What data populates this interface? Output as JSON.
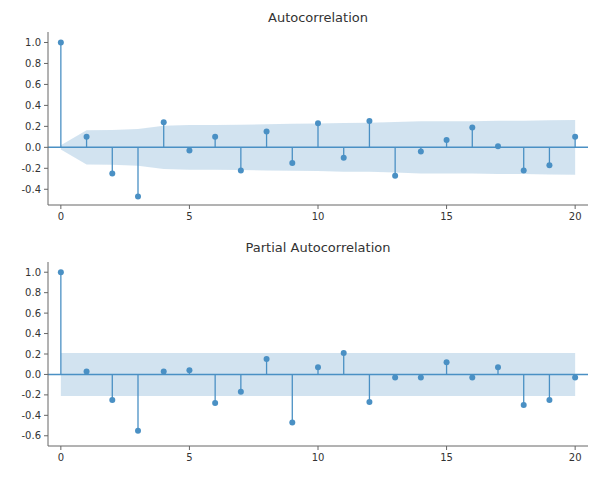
{
  "chart_data": [
    {
      "type": "stem",
      "title": "Autocorrelation",
      "x": [
        0,
        1,
        2,
        3,
        4,
        5,
        6,
        7,
        8,
        9,
        10,
        11,
        12,
        13,
        14,
        15,
        16,
        17,
        18,
        19,
        20
      ],
      "values": [
        1.0,
        0.1,
        -0.25,
        -0.47,
        0.24,
        -0.03,
        0.1,
        -0.22,
        0.15,
        -0.15,
        0.23,
        -0.1,
        0.25,
        -0.27,
        -0.04,
        0.07,
        0.19,
        0.01,
        -0.22,
        -0.17,
        0.1
      ],
      "conf_band": {
        "upper": [
          0.02,
          0.1639,
          0.1655,
          0.1754,
          0.2065,
          0.2138,
          0.2139,
          0.2152,
          0.2212,
          0.2239,
          0.2266,
          0.2327,
          0.2339,
          0.241,
          0.249,
          0.2491,
          0.2497,
          0.2535,
          0.2535,
          0.2586,
          0.2616
        ],
        "lower": [
          -0.02,
          -0.1639,
          -0.1655,
          -0.1754,
          -0.2065,
          -0.2138,
          -0.2139,
          -0.2152,
          -0.2212,
          -0.2239,
          -0.2266,
          -0.2327,
          -0.2339,
          -0.241,
          -0.249,
          -0.2491,
          -0.2497,
          -0.2535,
          -0.2535,
          -0.2586,
          -0.2616
        ]
      },
      "color": "#4a90c4",
      "xlim": [
        -0.5,
        20.5
      ],
      "xticks": [
        0,
        5,
        10,
        15,
        20
      ],
      "ylim": [
        -0.55,
        1.1
      ],
      "yticks": [
        -0.4,
        -0.2,
        {
          "value": 0,
          "label": "0.0"
        },
        0.2,
        0.4,
        0.6,
        0.8,
        {
          "value": 1,
          "label": "1.0"
        }
      ],
      "grid": false
    },
    {
      "type": "stem",
      "title": "Partial Autocorrelation",
      "x": [
        0,
        1,
        2,
        3,
        4,
        5,
        6,
        7,
        8,
        9,
        10,
        11,
        12,
        13,
        14,
        15,
        16,
        17,
        18,
        19,
        20
      ],
      "values": [
        1.0,
        0.03,
        -0.25,
        -0.55,
        0.03,
        0.04,
        -0.28,
        -0.17,
        0.15,
        -0.47,
        0.07,
        0.21,
        -0.27,
        -0.03,
        -0.03,
        0.12,
        -0.03,
        0.07,
        -0.3,
        -0.25,
        -0.03
      ],
      "conf_band": {
        "upper": [
          0.21,
          0.21,
          0.21,
          0.21,
          0.21,
          0.21,
          0.21,
          0.21,
          0.21,
          0.21,
          0.21,
          0.21,
          0.21,
          0.21,
          0.21,
          0.21,
          0.21,
          0.21,
          0.21,
          0.21,
          0.21
        ],
        "lower": [
          -0.21,
          -0.21,
          -0.21,
          -0.21,
          -0.21,
          -0.21,
          -0.21,
          -0.21,
          -0.21,
          -0.21,
          -0.21,
          -0.21,
          -0.21,
          -0.21,
          -0.21,
          -0.21,
          -0.21,
          -0.21,
          -0.21,
          -0.21,
          -0.21
        ]
      },
      "color": "#4a90c4",
      "xlim": [
        -0.5,
        20.5
      ],
      "xticks": [
        0,
        5,
        10,
        15,
        20
      ],
      "ylim": [
        -0.7,
        1.1
      ],
      "yticks": [
        -0.6,
        -0.4,
        -0.2,
        {
          "value": 0,
          "label": "0.0"
        },
        0.2,
        0.4,
        0.6,
        0.8,
        {
          "value": 1,
          "label": "1.0"
        }
      ],
      "grid": false
    }
  ]
}
